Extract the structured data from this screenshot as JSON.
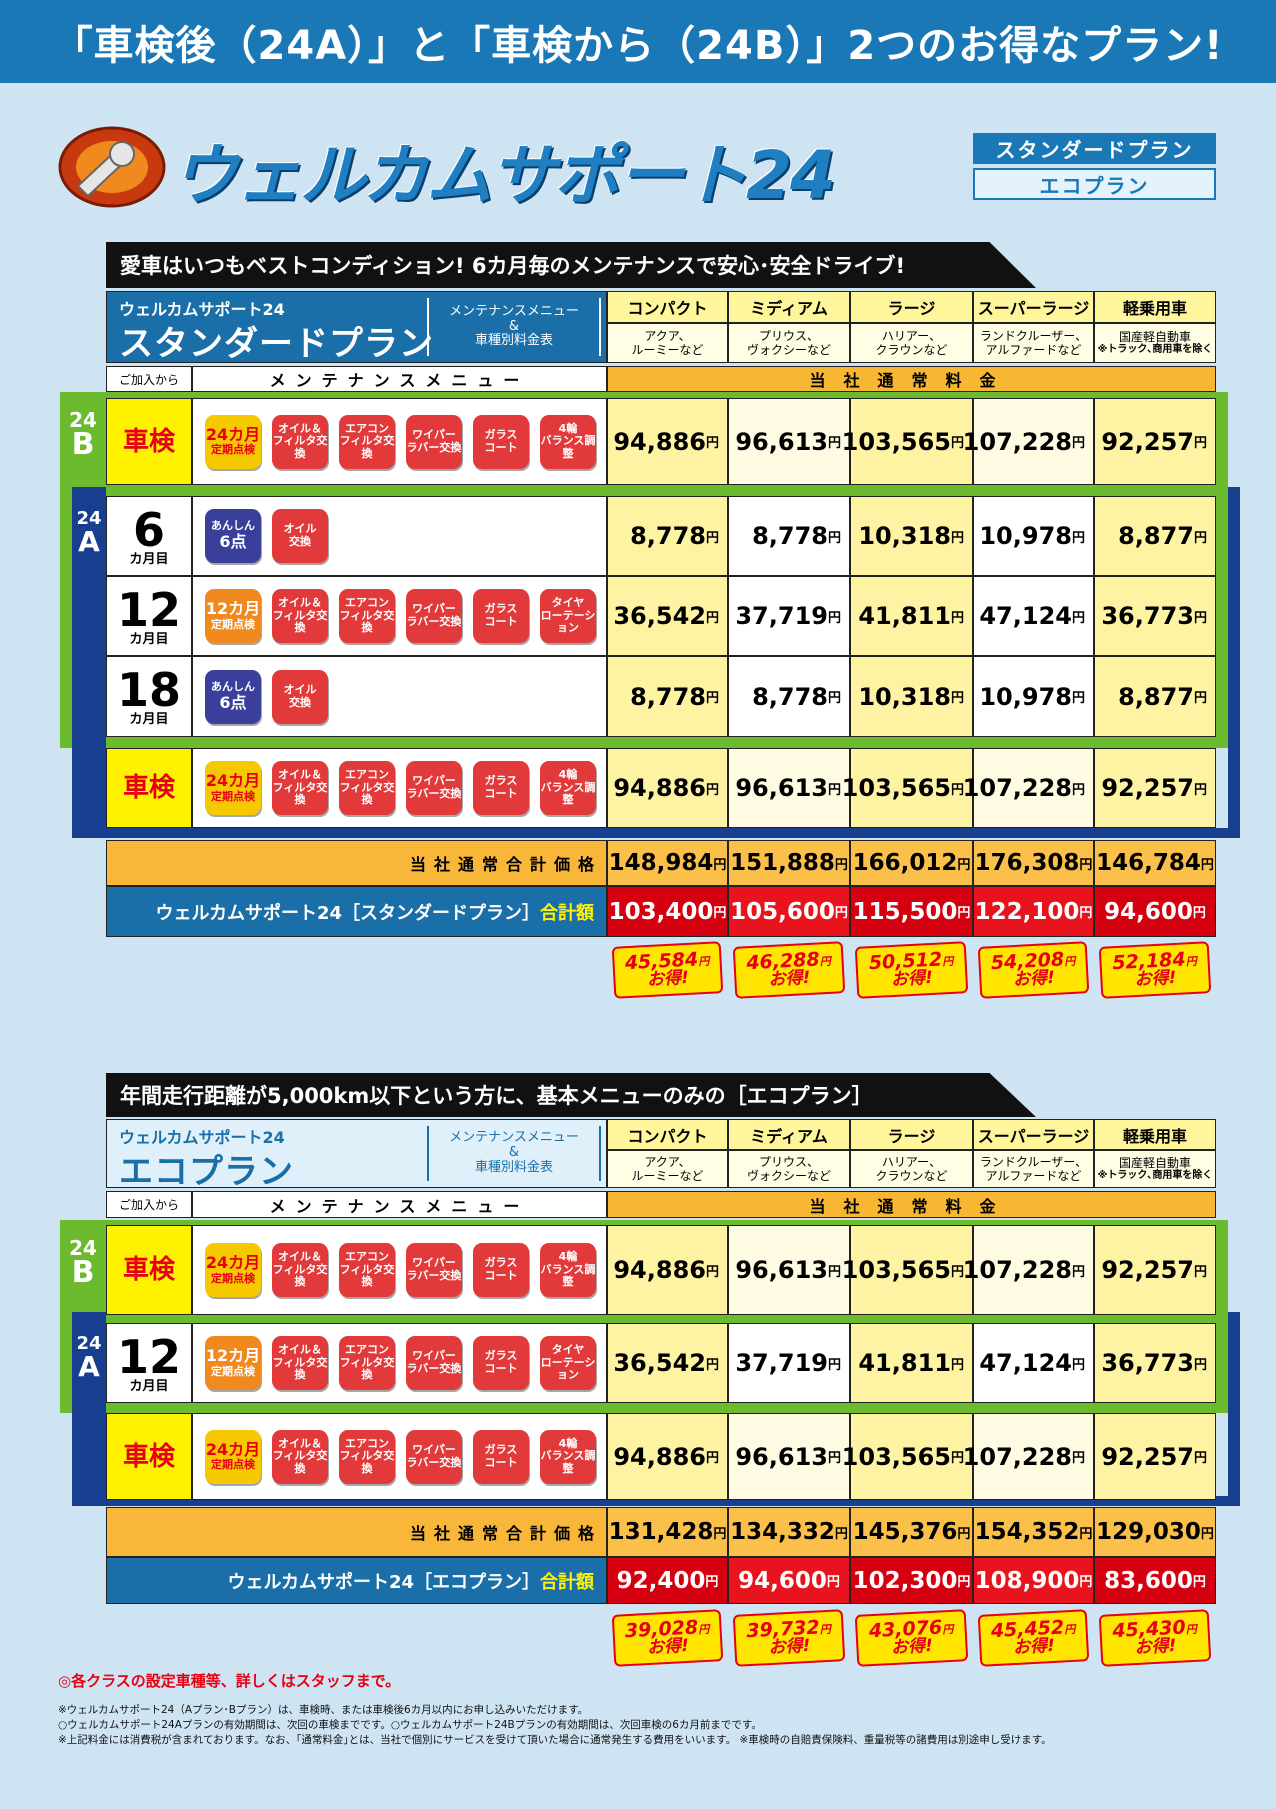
{
  "header": {
    "title": "「車検後（24A）」と「車検から（24B）」2つのお得なプラン!"
  },
  "brand": {
    "name": "ウェルカムサポート24",
    "plans": [
      "スタンダードプラン",
      "エコプラン"
    ]
  },
  "yen": "円",
  "deal": "お得!",
  "groups": {
    "b": [
      "24",
      "B"
    ],
    "a": [
      "24",
      "A"
    ]
  },
  "columns": [
    {
      "name": "コンパクト",
      "examples": [
        "アクア、",
        "ルーミーなど"
      ]
    },
    {
      "name": "ミディアム",
      "examples": [
        "プリウス、",
        "ヴォクシーなど"
      ]
    },
    {
      "name": "ラージ",
      "examples": [
        "ハリアー、",
        "クラウンなど"
      ]
    },
    {
      "name": "スーパーラージ",
      "examples": [
        "ランドクルーザー、",
        "アルファードなど"
      ]
    },
    {
      "name": "軽乗用車",
      "examples": [
        "国産軽自動車",
        "※トラック､商用車を除く"
      ]
    }
  ],
  "sections": [
    {
      "banner": "愛車はいつもベストコンディション! 6カ月毎のメンテナンスで安心･安全ドライブ!",
      "plan_prefix": "ウェルカムサポート24",
      "plan_name": "スタンダードプラン",
      "menu_note": [
        "メンテナンスメニュー",
        "&",
        "車種別料金表"
      ],
      "join_label": "ご加入から",
      "menu_header": "メンテナンスメニュー",
      "price_header": "当社通常料金",
      "rows": [
        {
          "period": "車検",
          "menu": [
            [
              "24カ月",
              "定期点検"
            ],
            [
              "オイル＆",
              "フィルタ交換"
            ],
            [
              "エアコン",
              "フィルタ交換"
            ],
            [
              "ワイパー",
              "ラバー交換"
            ],
            [
              "ガラス",
              "コート"
            ],
            [
              "4輪",
              "バランス調整"
            ]
          ],
          "prices": [
            "94,886",
            "96,613",
            "103,565",
            "107,228",
            "92,257"
          ]
        },
        {
          "period": "6",
          "period_unit": "カ月目",
          "menu": [
            [
              "あんしん",
              "6点"
            ],
            [
              "オイル",
              "交換"
            ]
          ],
          "prices": [
            "8,778",
            "8,778",
            "10,318",
            "10,978",
            "8,877"
          ]
        },
        {
          "period": "12",
          "period_unit": "カ月目",
          "menu": [
            [
              "12カ月",
              "定期点検"
            ],
            [
              "オイル＆",
              "フィルタ交換"
            ],
            [
              "エアコン",
              "フィルタ交換"
            ],
            [
              "ワイパー",
              "ラバー交換"
            ],
            [
              "ガラス",
              "コート"
            ],
            [
              "タイヤ",
              "ローテーション"
            ]
          ],
          "prices": [
            "36,542",
            "37,719",
            "41,811",
            "47,124",
            "36,773"
          ]
        },
        {
          "period": "18",
          "period_unit": "カ月目",
          "menu": [
            [
              "あんしん",
              "6点"
            ],
            [
              "オイル",
              "交換"
            ]
          ],
          "prices": [
            "8,778",
            "8,778",
            "10,318",
            "10,978",
            "8,877"
          ]
        },
        {
          "period": "車検",
          "menu": [
            [
              "24カ月",
              "定期点検"
            ],
            [
              "オイル＆",
              "フィルタ交換"
            ],
            [
              "エアコン",
              "フィルタ交換"
            ],
            [
              "ワイパー",
              "ラバー交換"
            ],
            [
              "ガラス",
              "コート"
            ],
            [
              "4輪",
              "バランス調整"
            ]
          ],
          "prices": [
            "94,886",
            "96,613",
            "103,565",
            "107,228",
            "92,257"
          ]
        }
      ],
      "total_label": "当社通常合計価格",
      "totals": [
        "148,984",
        "151,888",
        "166,012",
        "176,308",
        "146,784"
      ],
      "plan_total_label": "ウェルカムサポート24［スタンダードプラン］",
      "plan_total_suffix": "合計額",
      "plan_totals": [
        "103,400",
        "105,600",
        "115,500",
        "122,100",
        "94,600"
      ],
      "savings": [
        "45,584",
        "46,288",
        "50,512",
        "54,208",
        "52,184"
      ]
    },
    {
      "banner": "年間走行距離が5,000km以下という方に、基本メニューのみの［エコプラン］",
      "plan_prefix": "ウェルカムサポート24",
      "plan_name": "エコプラン",
      "menu_note": [
        "メンテナンスメニュー",
        "&",
        "車種別料金表"
      ],
      "join_label": "ご加入から",
      "menu_header": "メンテナンスメニュー",
      "price_header": "当社通常料金",
      "rows": [
        {
          "period": "車検",
          "menu": [
            [
              "24カ月",
              "定期点検"
            ],
            [
              "オイル＆",
              "フィルタ交換"
            ],
            [
              "エアコン",
              "フィルタ交換"
            ],
            [
              "ワイパー",
              "ラバー交換"
            ],
            [
              "ガラス",
              "コート"
            ],
            [
              "4輪",
              "バランス調整"
            ]
          ],
          "prices": [
            "94,886",
            "96,613",
            "103,565",
            "107,228",
            "92,257"
          ]
        },
        {
          "period": "12",
          "period_unit": "カ月目",
          "menu": [
            [
              "12カ月",
              "定期点検"
            ],
            [
              "オイル＆",
              "フィルタ交換"
            ],
            [
              "エアコン",
              "フィルタ交換"
            ],
            [
              "ワイパー",
              "ラバー交換"
            ],
            [
              "ガラス",
              "コート"
            ],
            [
              "タイヤ",
              "ローテーション"
            ]
          ],
          "prices": [
            "36,542",
            "37,719",
            "41,811",
            "47,124",
            "36,773"
          ]
        },
        {
          "period": "車検",
          "menu": [
            [
              "24カ月",
              "定期点検"
            ],
            [
              "オイル＆",
              "フィルタ交換"
            ],
            [
              "エアコン",
              "フィルタ交換"
            ],
            [
              "ワイパー",
              "ラバー交換"
            ],
            [
              "ガラス",
              "コート"
            ],
            [
              "4輪",
              "バランス調整"
            ]
          ],
          "prices": [
            "94,886",
            "96,613",
            "103,565",
            "107,228",
            "92,257"
          ]
        }
      ],
      "total_label": "当社通常合計価格",
      "totals": [
        "131,428",
        "134,332",
        "145,376",
        "154,352",
        "129,030"
      ],
      "plan_total_label": "ウェルカムサポート24［エコプラン］",
      "plan_total_suffix": "合計額",
      "plan_totals": [
        "92,400",
        "94,600",
        "102,300",
        "108,900",
        "83,600"
      ],
      "savings": [
        "39,028",
        "39,732",
        "43,076",
        "45,452",
        "45,430"
      ]
    }
  ],
  "footer": {
    "contact": "◎各クラスの設定車種等、詳しくはスタッフまで。",
    "notes": [
      "※ウェルカムサポート24（Aプラン･Bプラン）は、車検時、または車検後6カ月以内にお申し込みいただけます。",
      "○ウェルカムサポート24Aプランの有効期間は、次回の車検までです。○ウェルカムサポート24Bプランの有効期間は、次回車検の6カ月前までです。",
      "※上記料金には消費税が含まれております。なお、｢通常料金｣とは、当社で個別にサービスを受けて頂いた場合に通常発生する費用をいいます。 ※車検時の自賠責保険料、重量税等の諸費用は別途申し受けます。"
    ]
  }
}
